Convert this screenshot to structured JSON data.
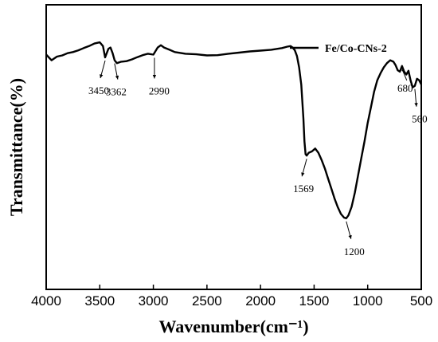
{
  "chart_data": {
    "type": "line",
    "xlabel": "Wavenumber(cm⁻¹)",
    "ylabel": "Transmittance(%)",
    "xlim": [
      4000,
      500
    ],
    "ylim": [
      0,
      100
    ],
    "x_reversed": true,
    "y_ticks_shown": false,
    "grid": false,
    "legend_position": "top-right",
    "x_ticks": [
      4000,
      3500,
      3000,
      2500,
      2000,
      1500,
      1000,
      500
    ],
    "x_tick_labels": [
      "4000",
      "3500",
      "3000",
      "2500",
      "2000",
      "1500",
      "1000",
      "500"
    ],
    "series": [
      {
        "name": "Fe/Co-CNs-2",
        "color": "#000000",
        "x": [
          4000,
          3950,
          3900,
          3850,
          3800,
          3750,
          3700,
          3650,
          3600,
          3550,
          3500,
          3470,
          3450,
          3420,
          3400,
          3380,
          3362,
          3340,
          3300,
          3250,
          3200,
          3150,
          3100,
          3050,
          3000,
          2960,
          2930,
          2900,
          2850,
          2800,
          2700,
          2600,
          2500,
          2400,
          2300,
          2200,
          2100,
          2000,
          1900,
          1800,
          1750,
          1720,
          1700,
          1680,
          1660,
          1640,
          1620,
          1600,
          1590,
          1580,
          1569,
          1550,
          1520,
          1490,
          1460,
          1430,
          1400,
          1370,
          1340,
          1310,
          1280,
          1250,
          1220,
          1200,
          1180,
          1150,
          1120,
          1090,
          1060,
          1030,
          1000,
          970,
          940,
          910,
          880,
          850,
          820,
          790,
          760,
          740,
          720,
          700,
          680,
          660,
          640,
          620,
          600,
          580,
          560,
          540,
          520,
          500
        ],
        "y": [
          82.5,
          80.5,
          81.8,
          82.2,
          83.0,
          83.4,
          84.0,
          84.8,
          85.5,
          86.4,
          86.8,
          85.5,
          81.5,
          84.5,
          85.0,
          83.0,
          80.5,
          79.5,
          80.0,
          80.2,
          80.8,
          81.6,
          82.3,
          82.8,
          82.5,
          85.0,
          85.8,
          85.0,
          84.2,
          83.4,
          82.8,
          82.6,
          82.2,
          82.3,
          82.8,
          83.2,
          83.6,
          83.9,
          84.2,
          84.8,
          85.3,
          85.5,
          85.0,
          84.0,
          82.0,
          78.0,
          72.0,
          60.0,
          52.0,
          47.5,
          47.0,
          48.0,
          48.5,
          49.5,
          48.0,
          45.5,
          42.5,
          39.0,
          35.5,
          32.0,
          29.0,
          26.5,
          25.2,
          25.0,
          26.0,
          29.0,
          34.0,
          40.0,
          46.0,
          52.0,
          58.5,
          64.0,
          69.5,
          73.5,
          76.0,
          78.0,
          79.5,
          80.5,
          80.0,
          78.8,
          77.0,
          76.5,
          78.5,
          76.5,
          75.5,
          76.8,
          73.5,
          71.0,
          71.5,
          74.0,
          73.5,
          72.0
        ]
      }
    ],
    "annotations": [
      {
        "label": "3450",
        "x": 3450,
        "y": 81.5
      },
      {
        "label": "3362",
        "x": 3362,
        "y": 80.5
      },
      {
        "label": "2990",
        "x": 2990,
        "y": 82.5
      },
      {
        "label": "1569",
        "x": 1569,
        "y": 47.0
      },
      {
        "label": "1200",
        "x": 1200,
        "y": 25.0
      },
      {
        "label": "680",
        "x": 680,
        "y": 78.5
      },
      {
        "label": "560",
        "x": 560,
        "y": 71.5
      }
    ]
  }
}
